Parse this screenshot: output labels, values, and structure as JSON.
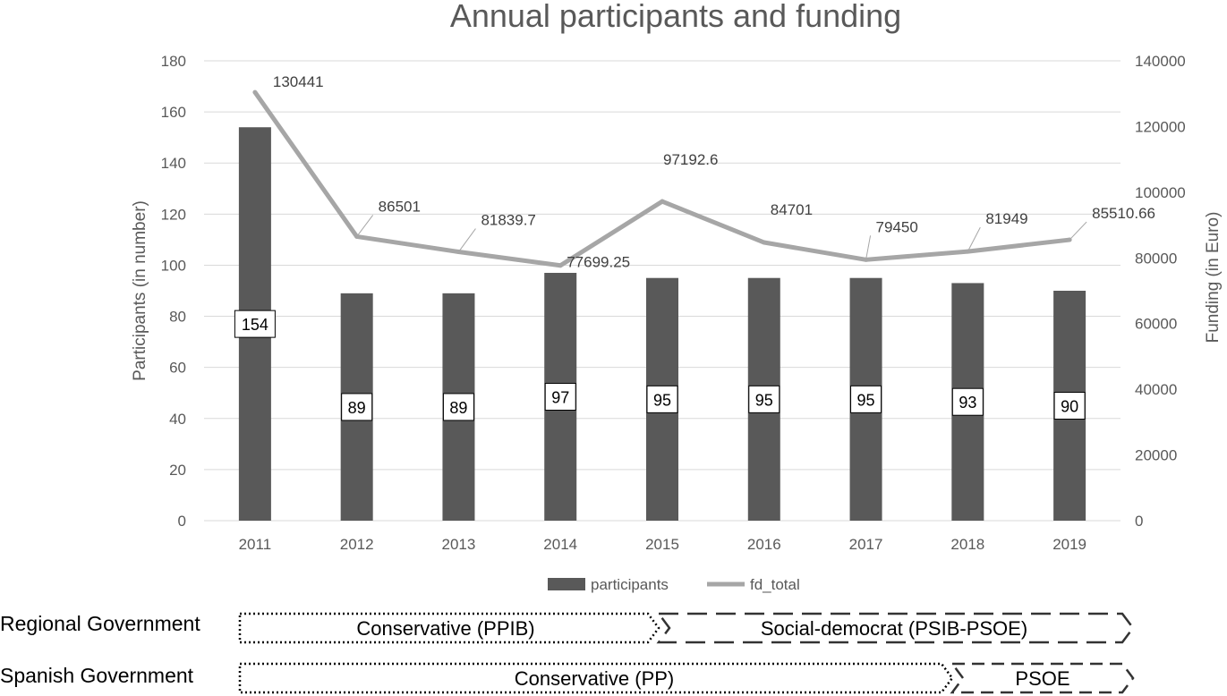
{
  "chart_data": {
    "type": "bar",
    "title": "Annual participants and funding",
    "xlabel": "",
    "ylabel": "Participants (in number)",
    "y2label": "Funding (in Euro)",
    "categories": [
      "2011",
      "2012",
      "2013",
      "2014",
      "2015",
      "2016",
      "2017",
      "2018",
      "2019"
    ],
    "ylim": [
      0,
      180
    ],
    "yticks": [
      "0",
      "20",
      "40",
      "60",
      "80",
      "100",
      "120",
      "140",
      "160",
      "180"
    ],
    "y2lim": [
      0,
      140000
    ],
    "y2ticks": [
      "0",
      "20000",
      "40000",
      "60000",
      "80000",
      "100000",
      "120000",
      "140000"
    ],
    "grid": true,
    "legend_position": "bottom",
    "series": [
      {
        "name": "participants",
        "kind": "bar",
        "axis": "left",
        "color": "#595959",
        "values": [
          154,
          89,
          89,
          97,
          95,
          95,
          95,
          93,
          90
        ],
        "labels": [
          "154",
          "89",
          "89",
          "97",
          "95",
          "95",
          "95",
          "93",
          "90"
        ]
      },
      {
        "name": "fd_total",
        "kind": "line",
        "axis": "right",
        "color": "#a6a6a6",
        "values": [
          130441,
          86501,
          81839.7,
          77699.25,
          97192.6,
          84701,
          79450,
          81949,
          85510.66
        ],
        "labels": [
          "130441",
          "86501",
          "81839.7",
          "77699.25",
          "97192.6",
          "84701",
          "79450",
          "81949",
          "85510.66"
        ]
      }
    ]
  },
  "governments": [
    {
      "label": "Regional Government",
      "periods": [
        {
          "text": "Conservative (PPIB)",
          "style": "dotted"
        },
        {
          "text": "Social-democrat (PSIB-PSOE)",
          "style": "dashed"
        }
      ]
    },
    {
      "label": "Spanish Government",
      "periods": [
        {
          "text": "Conservative (PP)",
          "style": "dotted"
        },
        {
          "text": "PSOE",
          "style": "dashed"
        }
      ]
    }
  ]
}
